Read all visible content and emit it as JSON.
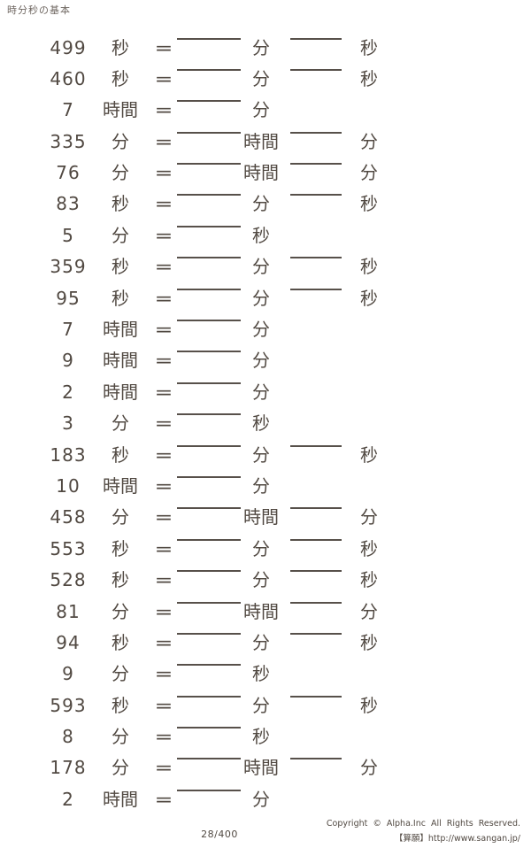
{
  "title": "時分秒の基本",
  "equals": "=",
  "problems": [
    {
      "value": "499",
      "from_unit": "秒",
      "answer1_unit": "分",
      "answer2_unit": "秒"
    },
    {
      "value": "460",
      "from_unit": "秒",
      "answer1_unit": "分",
      "answer2_unit": "秒"
    },
    {
      "value": "7",
      "from_unit": "時間",
      "answer1_unit": "分"
    },
    {
      "value": "335",
      "from_unit": "分",
      "answer1_unit": "時間",
      "answer2_unit": "分"
    },
    {
      "value": "76",
      "from_unit": "分",
      "answer1_unit": "時間",
      "answer2_unit": "分"
    },
    {
      "value": "83",
      "from_unit": "秒",
      "answer1_unit": "分",
      "answer2_unit": "秒"
    },
    {
      "value": "5",
      "from_unit": "分",
      "answer1_unit": "秒"
    },
    {
      "value": "359",
      "from_unit": "秒",
      "answer1_unit": "分",
      "answer2_unit": "秒"
    },
    {
      "value": "95",
      "from_unit": "秒",
      "answer1_unit": "分",
      "answer2_unit": "秒"
    },
    {
      "value": "7",
      "from_unit": "時間",
      "answer1_unit": "分"
    },
    {
      "value": "9",
      "from_unit": "時間",
      "answer1_unit": "分"
    },
    {
      "value": "2",
      "from_unit": "時間",
      "answer1_unit": "分"
    },
    {
      "value": "3",
      "from_unit": "分",
      "answer1_unit": "秒"
    },
    {
      "value": "183",
      "from_unit": "秒",
      "answer1_unit": "分",
      "answer2_unit": "秒"
    },
    {
      "value": "10",
      "from_unit": "時間",
      "answer1_unit": "分"
    },
    {
      "value": "458",
      "from_unit": "分",
      "answer1_unit": "時間",
      "answer2_unit": "分"
    },
    {
      "value": "553",
      "from_unit": "秒",
      "answer1_unit": "分",
      "answer2_unit": "秒"
    },
    {
      "value": "528",
      "from_unit": "秒",
      "answer1_unit": "分",
      "answer2_unit": "秒"
    },
    {
      "value": "81",
      "from_unit": "分",
      "answer1_unit": "時間",
      "answer2_unit": "分"
    },
    {
      "value": "94",
      "from_unit": "秒",
      "answer1_unit": "分",
      "answer2_unit": "秒"
    },
    {
      "value": "9",
      "from_unit": "分",
      "answer1_unit": "秒"
    },
    {
      "value": "593",
      "from_unit": "秒",
      "answer1_unit": "分",
      "answer2_unit": "秒"
    },
    {
      "value": "8",
      "from_unit": "分",
      "answer1_unit": "秒"
    },
    {
      "value": "178",
      "from_unit": "分",
      "answer1_unit": "時間",
      "answer2_unit": "分"
    },
    {
      "value": "2",
      "from_unit": "時間",
      "answer1_unit": "分"
    }
  ],
  "footer": {
    "page": "28/400",
    "copyright": "Copyright © Alpha.Inc All Rights Reserved.",
    "site": "【算願】http://www.sangan.jp/"
  },
  "colors": {
    "text": "#514942",
    "line": "#57504a",
    "title": "#6e6660"
  }
}
